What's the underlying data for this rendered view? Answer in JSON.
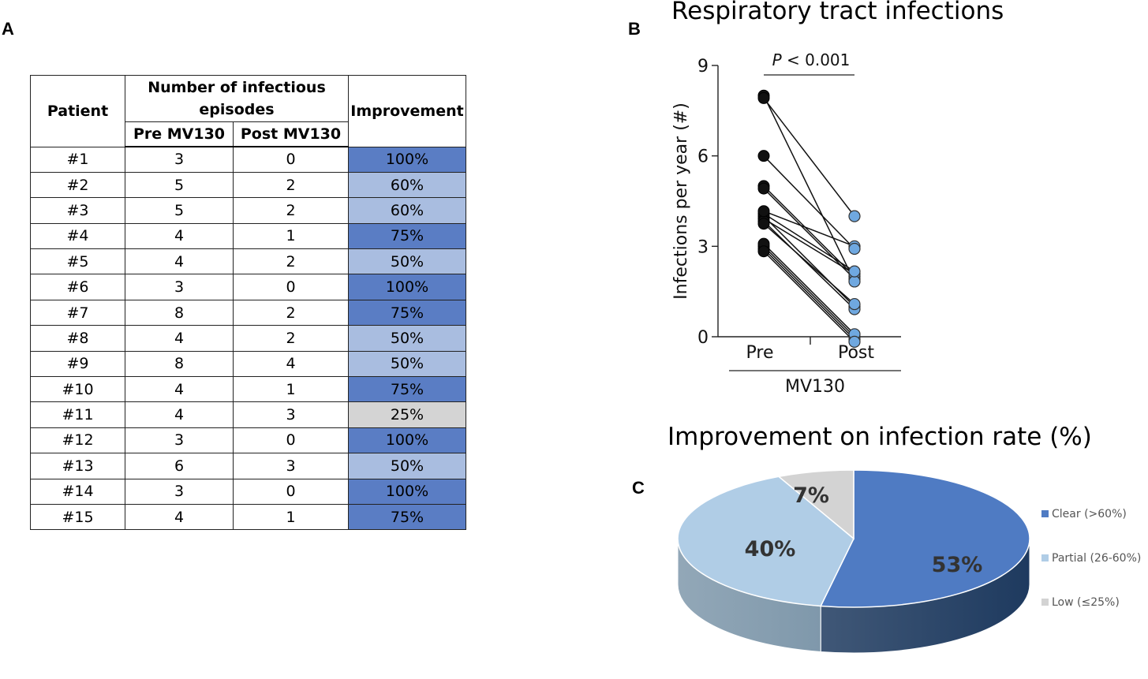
{
  "panels": {
    "a": "A",
    "b": "B",
    "c": "C"
  },
  "table": {
    "headers": {
      "patient": "Patient",
      "episodes": "Number of infectious episodes",
      "pre": "Pre MV130",
      "post": "Post MV130",
      "improvement": "Improvement"
    },
    "rows": [
      {
        "patient": "#1",
        "pre": "3",
        "post": "0",
        "improvement": "100%",
        "level": "high"
      },
      {
        "patient": "#2",
        "pre": "5",
        "post": "2",
        "improvement": "60%",
        "level": "mid"
      },
      {
        "patient": "#3",
        "pre": "5",
        "post": "2",
        "improvement": "60%",
        "level": "mid"
      },
      {
        "patient": "#4",
        "pre": "4",
        "post": "1",
        "improvement": "75%",
        "level": "high"
      },
      {
        "patient": "#5",
        "pre": "4",
        "post": "2",
        "improvement": "50%",
        "level": "mid"
      },
      {
        "patient": "#6",
        "pre": "3",
        "post": "0",
        "improvement": "100%",
        "level": "high"
      },
      {
        "patient": "#7",
        "pre": "8",
        "post": "2",
        "improvement": "75%",
        "level": "high"
      },
      {
        "patient": "#8",
        "pre": "4",
        "post": "2",
        "improvement": "50%",
        "level": "mid"
      },
      {
        "patient": "#9",
        "pre": "8",
        "post": "4",
        "improvement": "50%",
        "level": "mid"
      },
      {
        "patient": "#10",
        "pre": "4",
        "post": "1",
        "improvement": "75%",
        "level": "high"
      },
      {
        "patient": "#11",
        "pre": "4",
        "post": "3",
        "improvement": "25%",
        "level": "low"
      },
      {
        "patient": "#12",
        "pre": "3",
        "post": "0",
        "improvement": "100%",
        "level": "high"
      },
      {
        "patient": "#13",
        "pre": "6",
        "post": "3",
        "improvement": "50%",
        "level": "mid"
      },
      {
        "patient": "#14",
        "pre": "3",
        "post": "0",
        "improvement": "100%",
        "level": "high"
      },
      {
        "patient": "#15",
        "pre": "4",
        "post": "1",
        "improvement": "75%",
        "level": "high"
      }
    ]
  },
  "chart_data": [
    {
      "type": "scatter",
      "subtype": "paired-before-after",
      "title": "Respiratory tract infections",
      "ylabel": "Infections per year (#)",
      "xlabel": "MV130",
      "categories": [
        "Pre",
        "Post"
      ],
      "ylim": [
        0,
        9
      ],
      "yticks": [
        0,
        3,
        6,
        9
      ],
      "annotation": {
        "italic": "P",
        "rest": " < 0.001"
      },
      "pairs": [
        {
          "pre": 3,
          "post": 0
        },
        {
          "pre": 5,
          "post": 2
        },
        {
          "pre": 5,
          "post": 2
        },
        {
          "pre": 4,
          "post": 1
        },
        {
          "pre": 4,
          "post": 2
        },
        {
          "pre": 3,
          "post": 0
        },
        {
          "pre": 8,
          "post": 2
        },
        {
          "pre": 4,
          "post": 2
        },
        {
          "pre": 8,
          "post": 4
        },
        {
          "pre": 4,
          "post": 1
        },
        {
          "pre": 4,
          "post": 3
        },
        {
          "pre": 3,
          "post": 0
        },
        {
          "pre": 6,
          "post": 3
        },
        {
          "pre": 3,
          "post": 0
        },
        {
          "pre": 4,
          "post": 1
        }
      ],
      "colors": {
        "pre": "#111111",
        "post": "#6fa8e0"
      }
    },
    {
      "type": "pie",
      "style": "3d",
      "title": "Improvement on infection rate (%)",
      "slices": [
        {
          "label": "Clear (>60%)",
          "value": 53,
          "display": "53%",
          "color": "#4f7bc3",
          "side": "#1e3a5f"
        },
        {
          "label": "Partial (26-60%)",
          "value": 40,
          "display": "40%",
          "color": "#b0cde6",
          "side": "#7f98ab"
        },
        {
          "label": "Low (≤25%)",
          "value": 7,
          "display": "7%",
          "color": "#d3d3d3",
          "side": "#9a9a9a"
        }
      ]
    }
  ]
}
